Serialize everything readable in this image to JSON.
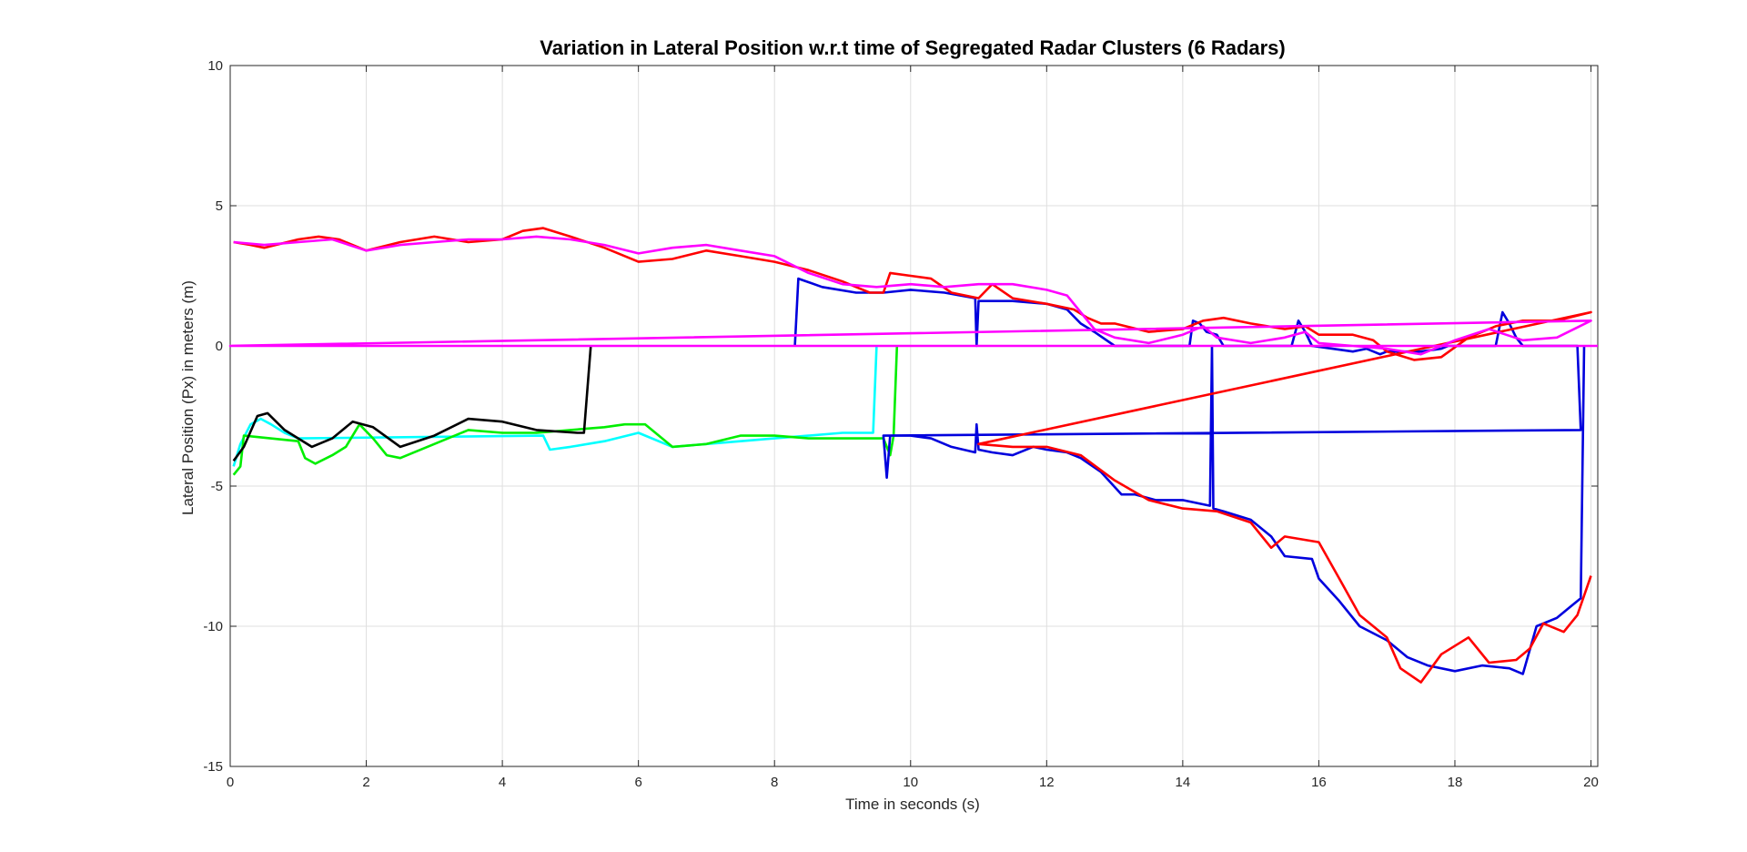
{
  "chart_data": {
    "type": "line",
    "title": "Variation in Lateral Position w.r.t time of Segregated Radar Clusters (6 Radars)",
    "xlabel": "Time in seconds (s)",
    "ylabel": "Lateral Position (Px) in meters (m)",
    "xlim": [
      0,
      20.1
    ],
    "ylim": [
      -15,
      10
    ],
    "xticks": [
      0,
      2,
      4,
      6,
      8,
      10,
      12,
      14,
      16,
      18,
      20
    ],
    "yticks": [
      -15,
      -10,
      -5,
      0,
      5,
      10
    ],
    "grid": true,
    "legend": "none",
    "series": [
      {
        "color": "#00ffff",
        "points": [
          [
            0.05,
            -4.3
          ],
          [
            0.15,
            -3.5
          ],
          [
            0.3,
            -2.8
          ],
          [
            0.45,
            -2.6
          ],
          [
            0.6,
            -2.8
          ],
          [
            0.8,
            -3.1
          ],
          [
            1.0,
            -3.3
          ],
          [
            4.6,
            -3.2
          ],
          [
            4.7,
            -3.7
          ],
          [
            5.0,
            -3.6
          ],
          [
            5.5,
            -3.4
          ],
          [
            6.0,
            -3.1
          ],
          [
            6.5,
            -3.6
          ],
          [
            7.0,
            -3.5
          ],
          [
            7.5,
            -3.4
          ],
          [
            8.0,
            -3.3
          ],
          [
            9.0,
            -3.1
          ],
          [
            9.45,
            -3.1
          ],
          [
            9.5,
            0
          ]
        ]
      },
      {
        "color": "#00ee00",
        "points": [
          [
            0.05,
            -4.6
          ],
          [
            0.15,
            -4.3
          ],
          [
            0.2,
            -3.2
          ],
          [
            1.0,
            -3.4
          ],
          [
            1.1,
            -4.0
          ],
          [
            1.25,
            -4.2
          ],
          [
            1.5,
            -3.9
          ],
          [
            1.7,
            -3.6
          ],
          [
            1.9,
            -2.8
          ],
          [
            2.1,
            -3.3
          ],
          [
            2.3,
            -3.9
          ],
          [
            2.5,
            -4.0
          ],
          [
            3.0,
            -3.5
          ],
          [
            3.5,
            -3.0
          ],
          [
            4.0,
            -3.1
          ],
          [
            4.5,
            -3.1
          ],
          [
            5.0,
            -3.0
          ],
          [
            5.5,
            -2.9
          ],
          [
            5.8,
            -2.8
          ],
          [
            6.1,
            -2.8
          ],
          [
            6.5,
            -3.6
          ],
          [
            7.0,
            -3.5
          ],
          [
            7.5,
            -3.2
          ],
          [
            8.0,
            -3.2
          ],
          [
            8.5,
            -3.3
          ],
          [
            9.2,
            -3.3
          ],
          [
            9.6,
            -3.3
          ],
          [
            9.7,
            -3.9
          ],
          [
            9.75,
            -3.2
          ],
          [
            9.8,
            0
          ]
        ]
      },
      {
        "color": "#000000",
        "points": [
          [
            0.05,
            -4.1
          ],
          [
            0.2,
            -3.6
          ],
          [
            0.4,
            -2.5
          ],
          [
            0.55,
            -2.4
          ],
          [
            0.8,
            -3.0
          ],
          [
            1.2,
            -3.6
          ],
          [
            1.5,
            -3.3
          ],
          [
            1.8,
            -2.7
          ],
          [
            2.1,
            -2.9
          ],
          [
            2.5,
            -3.6
          ],
          [
            3.0,
            -3.2
          ],
          [
            3.5,
            -2.6
          ],
          [
            4.0,
            -2.7
          ],
          [
            4.5,
            -3.0
          ],
          [
            5.1,
            -3.1
          ],
          [
            5.2,
            -3.1
          ],
          [
            5.3,
            0
          ]
        ]
      },
      {
        "color": "#0000dd",
        "points": [
          [
            8.3,
            0
          ],
          [
            8.35,
            2.4
          ],
          [
            8.7,
            2.1
          ],
          [
            9.2,
            1.9
          ],
          [
            9.6,
            1.9
          ],
          [
            10.0,
            2.0
          ],
          [
            10.5,
            1.9
          ],
          [
            10.95,
            1.7
          ],
          [
            10.97,
            0
          ],
          [
            11.0,
            1.6
          ],
          [
            11.5,
            1.6
          ],
          [
            12.0,
            1.5
          ],
          [
            12.3,
            1.3
          ],
          [
            12.5,
            0.8
          ],
          [
            12.7,
            0.5
          ],
          [
            13.0,
            0
          ],
          [
            14.1,
            0
          ],
          [
            14.15,
            0.9
          ],
          [
            14.25,
            0.8
          ],
          [
            14.35,
            0.5
          ],
          [
            14.5,
            0.4
          ],
          [
            14.6,
            0
          ],
          [
            15.6,
            0
          ],
          [
            15.7,
            0.9
          ],
          [
            15.8,
            0.5
          ],
          [
            15.9,
            0
          ],
          [
            16.2,
            -0.1
          ],
          [
            16.5,
            -0.2
          ],
          [
            16.7,
            -0.1
          ],
          [
            16.9,
            -0.3
          ],
          [
            17.0,
            -0.2
          ],
          [
            17.2,
            -0.2
          ],
          [
            17.5,
            -0.2
          ],
          [
            17.8,
            -0.1
          ],
          [
            17.9,
            0
          ],
          [
            18.6,
            0
          ],
          [
            18.7,
            1.2
          ],
          [
            18.8,
            0.8
          ],
          [
            18.9,
            0.3
          ],
          [
            19.0,
            0
          ],
          [
            19.8,
            0
          ],
          [
            19.85,
            -3.0
          ],
          [
            9.6,
            -3.2
          ],
          [
            9.65,
            -4.7
          ],
          [
            9.7,
            -3.2
          ],
          [
            10.0,
            -3.2
          ],
          [
            10.3,
            -3.3
          ],
          [
            10.6,
            -3.6
          ],
          [
            10.95,
            -3.8
          ],
          [
            10.97,
            -2.8
          ],
          [
            11.0,
            -3.7
          ],
          [
            11.2,
            -3.8
          ],
          [
            11.5,
            -3.9
          ],
          [
            11.8,
            -3.6
          ],
          [
            12.0,
            -3.7
          ],
          [
            12.3,
            -3.8
          ],
          [
            12.5,
            -4.0
          ],
          [
            12.8,
            -4.5
          ],
          [
            13.1,
            -5.3
          ],
          [
            13.3,
            -5.3
          ],
          [
            13.6,
            -5.5
          ],
          [
            14.0,
            -5.5
          ],
          [
            14.4,
            -5.7
          ],
          [
            14.43,
            0
          ],
          [
            14.45,
            -5.8
          ],
          [
            14.6,
            -5.9
          ],
          [
            15.0,
            -6.2
          ],
          [
            15.3,
            -6.8
          ],
          [
            15.5,
            -7.5
          ],
          [
            15.9,
            -7.6
          ],
          [
            16.0,
            -8.3
          ],
          [
            16.3,
            -9.1
          ],
          [
            16.6,
            -10.0
          ],
          [
            17.0,
            -10.5
          ],
          [
            17.3,
            -11.1
          ],
          [
            17.6,
            -11.4
          ],
          [
            18.0,
            -11.6
          ],
          [
            18.4,
            -11.4
          ],
          [
            18.8,
            -11.5
          ],
          [
            19.0,
            -11.7
          ],
          [
            19.2,
            -10.0
          ],
          [
            19.5,
            -9.7
          ],
          [
            19.7,
            -9.3
          ],
          [
            19.85,
            -9.0
          ],
          [
            19.9,
            0
          ]
        ]
      },
      {
        "color": "#ff0000",
        "points": [
          [
            0.05,
            3.7
          ],
          [
            0.3,
            3.6
          ],
          [
            0.5,
            3.5
          ],
          [
            1.0,
            3.8
          ],
          [
            1.3,
            3.9
          ],
          [
            1.6,
            3.8
          ],
          [
            2.0,
            3.4
          ],
          [
            2.5,
            3.7
          ],
          [
            3.0,
            3.9
          ],
          [
            3.5,
            3.7
          ],
          [
            4.0,
            3.8
          ],
          [
            4.3,
            4.1
          ],
          [
            4.6,
            4.2
          ],
          [
            5.0,
            3.9
          ],
          [
            5.5,
            3.5
          ],
          [
            6.0,
            3.0
          ],
          [
            6.5,
            3.1
          ],
          [
            7.0,
            3.4
          ],
          [
            7.5,
            3.2
          ],
          [
            8.0,
            3.0
          ],
          [
            8.5,
            2.7
          ],
          [
            9.0,
            2.3
          ],
          [
            9.4,
            1.9
          ],
          [
            9.6,
            1.9
          ],
          [
            9.7,
            2.6
          ],
          [
            10.0,
            2.5
          ],
          [
            10.3,
            2.4
          ],
          [
            10.6,
            1.9
          ],
          [
            11.0,
            1.7
          ],
          [
            11.2,
            2.2
          ],
          [
            11.5,
            1.7
          ],
          [
            12.0,
            1.5
          ],
          [
            12.4,
            1.3
          ],
          [
            12.6,
            1.0
          ],
          [
            12.8,
            0.8
          ],
          [
            13.0,
            0.8
          ],
          [
            13.5,
            0.5
          ],
          [
            14.0,
            0.6
          ],
          [
            14.3,
            0.9
          ],
          [
            14.6,
            1.0
          ],
          [
            15.0,
            0.8
          ],
          [
            15.5,
            0.6
          ],
          [
            15.8,
            0.7
          ],
          [
            16.0,
            0.4
          ],
          [
            16.5,
            0.4
          ],
          [
            16.8,
            0.2
          ],
          [
            17.0,
            -0.2
          ],
          [
            17.4,
            -0.5
          ],
          [
            17.8,
            -0.4
          ],
          [
            18.2,
            0.3
          ],
          [
            18.6,
            0.7
          ],
          [
            19.0,
            0.9
          ],
          [
            19.5,
            0.9
          ],
          [
            20.0,
            1.2
          ],
          [
            11.0,
            -3.5
          ],
          [
            11.5,
            -3.6
          ],
          [
            12.0,
            -3.6
          ],
          [
            12.5,
            -3.9
          ],
          [
            13.0,
            -4.8
          ],
          [
            13.5,
            -5.5
          ],
          [
            14.0,
            -5.8
          ],
          [
            14.5,
            -5.9
          ],
          [
            15.0,
            -6.3
          ],
          [
            15.3,
            -7.2
          ],
          [
            15.5,
            -6.8
          ],
          [
            16.0,
            -7.0
          ],
          [
            16.3,
            -8.3
          ],
          [
            16.6,
            -9.6
          ],
          [
            17.0,
            -10.4
          ],
          [
            17.2,
            -11.5
          ],
          [
            17.5,
            -12.0
          ],
          [
            17.8,
            -11.0
          ],
          [
            18.2,
            -10.4
          ],
          [
            18.5,
            -11.3
          ],
          [
            18.9,
            -11.2
          ],
          [
            19.1,
            -10.8
          ],
          [
            19.3,
            -9.9
          ],
          [
            19.6,
            -10.2
          ],
          [
            19.8,
            -9.6
          ],
          [
            20.0,
            -8.2
          ]
        ]
      },
      {
        "color": "#ff00ff",
        "points": [
          [
            0.05,
            3.7
          ],
          [
            0.5,
            3.6
          ],
          [
            1.0,
            3.7
          ],
          [
            1.5,
            3.8
          ],
          [
            2.0,
            3.4
          ],
          [
            2.5,
            3.6
          ],
          [
            3.0,
            3.7
          ],
          [
            3.5,
            3.8
          ],
          [
            4.0,
            3.8
          ],
          [
            4.5,
            3.9
          ],
          [
            5.0,
            3.8
          ],
          [
            5.5,
            3.6
          ],
          [
            6.0,
            3.3
          ],
          [
            6.5,
            3.5
          ],
          [
            7.0,
            3.6
          ],
          [
            7.5,
            3.4
          ],
          [
            8.0,
            3.2
          ],
          [
            8.5,
            2.6
          ],
          [
            9.0,
            2.2
          ],
          [
            9.5,
            2.1
          ],
          [
            10.0,
            2.2
          ],
          [
            10.5,
            2.1
          ],
          [
            11.0,
            2.2
          ],
          [
            11.5,
            2.2
          ],
          [
            12.0,
            2.0
          ],
          [
            12.3,
            1.8
          ],
          [
            12.5,
            1.2
          ],
          [
            12.7,
            0.6
          ],
          [
            13.0,
            0.3
          ],
          [
            13.5,
            0.1
          ],
          [
            14.0,
            0.4
          ],
          [
            14.3,
            0.7
          ],
          [
            14.5,
            0.3
          ],
          [
            15.0,
            0.1
          ],
          [
            15.5,
            0.3
          ],
          [
            15.8,
            0.5
          ],
          [
            16.0,
            0.1
          ],
          [
            16.5,
            0
          ],
          [
            17.0,
            -0.1
          ],
          [
            17.5,
            -0.3
          ],
          [
            18.0,
            0.2
          ],
          [
            18.5,
            0.6
          ],
          [
            19.0,
            0.2
          ],
          [
            19.5,
            0.3
          ],
          [
            20.0,
            0.9
          ],
          [
            0,
            0
          ],
          [
            20.1,
            0
          ]
        ]
      }
    ]
  }
}
